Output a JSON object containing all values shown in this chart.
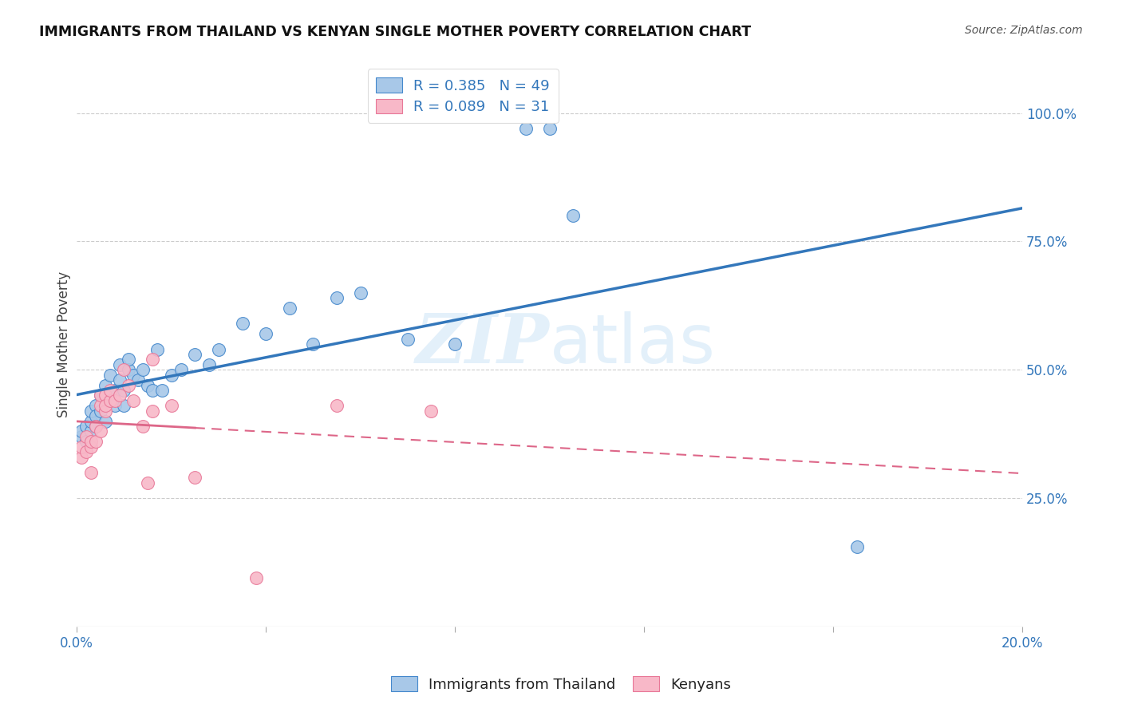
{
  "title": "IMMIGRANTS FROM THAILAND VS KENYAN SINGLE MOTHER POVERTY CORRELATION CHART",
  "source": "Source: ZipAtlas.com",
  "ylabel": "Single Mother Poverty",
  "legend_label_blue": "Immigrants from Thailand",
  "legend_label_pink": "Kenyans",
  "R_blue": 0.385,
  "N_blue": 49,
  "R_pink": 0.089,
  "N_pink": 31,
  "blue_fill_color": "#a8c8e8",
  "pink_fill_color": "#f8b8c8",
  "blue_edge_color": "#4488cc",
  "pink_edge_color": "#e87898",
  "blue_line_color": "#3377bb",
  "pink_line_color": "#dd6688",
  "watermark_color": "#d8eaf8",
  "blue_scatter_x": [
    0.001,
    0.001,
    0.002,
    0.002,
    0.003,
    0.003,
    0.003,
    0.004,
    0.004,
    0.004,
    0.005,
    0.005,
    0.006,
    0.006,
    0.006,
    0.007,
    0.007,
    0.008,
    0.008,
    0.009,
    0.009,
    0.01,
    0.01,
    0.011,
    0.011,
    0.012,
    0.013,
    0.014,
    0.015,
    0.016,
    0.017,
    0.018,
    0.02,
    0.022,
    0.025,
    0.028,
    0.03,
    0.035,
    0.04,
    0.045,
    0.05,
    0.055,
    0.06,
    0.07,
    0.08,
    0.095,
    0.1,
    0.105,
    0.165
  ],
  "blue_scatter_y": [
    0.37,
    0.38,
    0.36,
    0.39,
    0.38,
    0.4,
    0.42,
    0.43,
    0.41,
    0.39,
    0.45,
    0.42,
    0.47,
    0.45,
    0.4,
    0.49,
    0.44,
    0.46,
    0.43,
    0.48,
    0.51,
    0.46,
    0.43,
    0.5,
    0.52,
    0.49,
    0.48,
    0.5,
    0.47,
    0.46,
    0.54,
    0.46,
    0.49,
    0.5,
    0.53,
    0.51,
    0.54,
    0.59,
    0.57,
    0.62,
    0.55,
    0.64,
    0.65,
    0.56,
    0.55,
    0.97,
    0.97,
    0.8,
    0.155
  ],
  "pink_scatter_x": [
    0.001,
    0.001,
    0.002,
    0.002,
    0.003,
    0.003,
    0.003,
    0.004,
    0.004,
    0.005,
    0.005,
    0.005,
    0.006,
    0.006,
    0.006,
    0.007,
    0.007,
    0.008,
    0.009,
    0.01,
    0.011,
    0.012,
    0.014,
    0.015,
    0.016,
    0.016,
    0.02,
    0.025,
    0.055,
    0.075,
    0.038
  ],
  "pink_scatter_y": [
    0.33,
    0.35,
    0.34,
    0.37,
    0.35,
    0.36,
    0.3,
    0.36,
    0.39,
    0.43,
    0.45,
    0.38,
    0.45,
    0.42,
    0.43,
    0.44,
    0.46,
    0.44,
    0.45,
    0.5,
    0.47,
    0.44,
    0.39,
    0.28,
    0.42,
    0.52,
    0.43,
    0.29,
    0.43,
    0.42,
    0.095
  ],
  "xlim": [
    0.0,
    0.2
  ],
  "ylim": [
    0.0,
    1.1
  ],
  "ytick_values": [
    0.25,
    0.5,
    0.75,
    1.0
  ],
  "ytick_labels": [
    "25.0%",
    "50.0%",
    "75.0%",
    "100.0%"
  ],
  "xtick_values": [
    0.0,
    0.04,
    0.08,
    0.12,
    0.16,
    0.2
  ]
}
